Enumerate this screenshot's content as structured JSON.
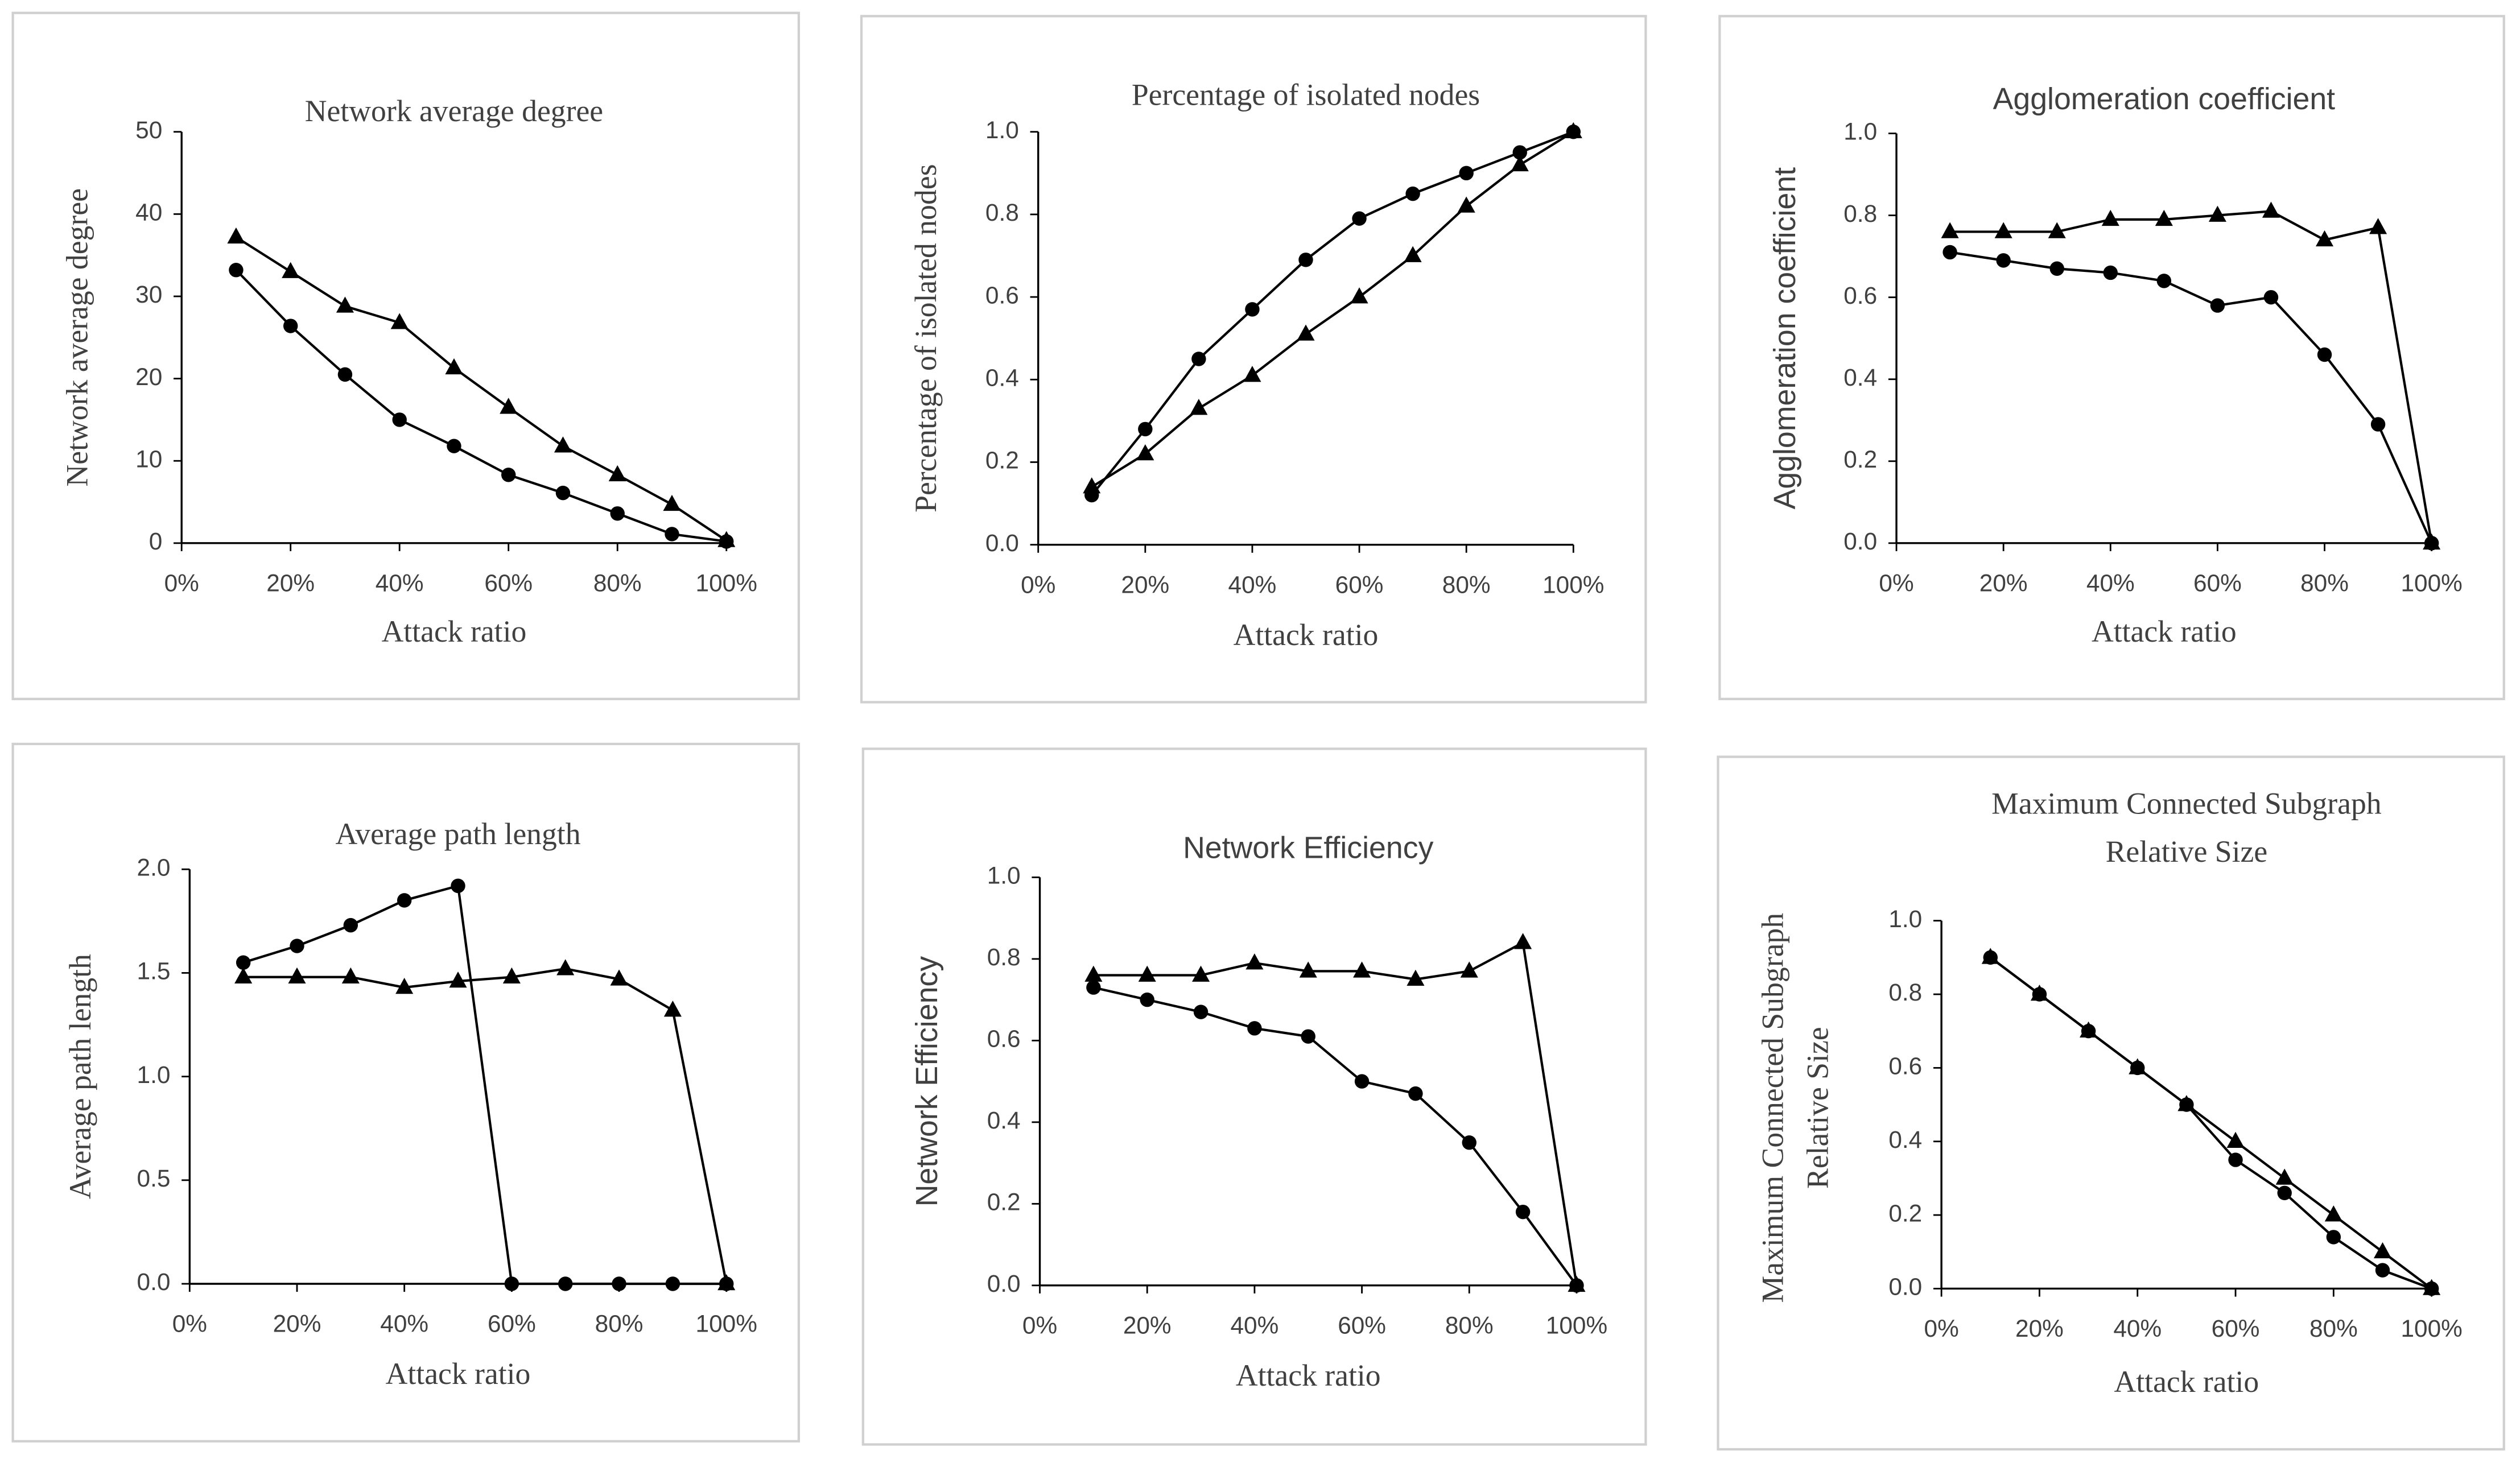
{
  "chart_data": [
    {
      "type": "line",
      "title": "Network average degree",
      "xlabel": "Attack ratio",
      "ylabel": "Network average degree",
      "x": [
        10,
        20,
        30,
        40,
        50,
        60,
        70,
        80,
        90,
        100
      ],
      "series": [
        {
          "marker": "triangle",
          "color": "#000000",
          "values": [
            37.2,
            33,
            28.8,
            26.8,
            21.3,
            16.5,
            11.8,
            8.3,
            4.7,
            0.3
          ]
        },
        {
          "marker": "circle",
          "color": "#000000",
          "values": [
            33.2,
            26.4,
            20.5,
            15,
            11.8,
            8.3,
            6.1,
            3.6,
            1.1,
            0.2
          ]
        }
      ],
      "xlim": [
        0,
        100
      ],
      "xticks": [
        {
          "value": 0,
          "label": "0%"
        },
        {
          "value": 20,
          "label": "20%"
        },
        {
          "value": 40,
          "label": "40%"
        },
        {
          "value": 60,
          "label": "60%"
        },
        {
          "value": 80,
          "label": "80%"
        },
        {
          "value": 100,
          "label": "100%"
        }
      ],
      "ylim": [
        0,
        50
      ],
      "yticks": [
        0,
        10,
        20,
        30,
        40,
        50
      ]
    },
    {
      "type": "line",
      "title": "Percentage of isolated nodes",
      "xlabel": "Attack ratio",
      "ylabel": "Percentage of isolated nodes",
      "x": [
        10,
        20,
        30,
        40,
        50,
        60,
        70,
        80,
        90,
        100
      ],
      "series": [
        {
          "marker": "circle",
          "color": "#000000",
          "values": [
            0.12,
            0.28,
            0.45,
            0.57,
            0.69,
            0.79,
            0.85,
            0.9,
            0.95,
            1.0
          ]
        },
        {
          "marker": "triangle",
          "color": "#000000",
          "values": [
            0.14,
            0.22,
            0.33,
            0.41,
            0.51,
            0.6,
            0.7,
            0.82,
            0.92,
            1.0
          ]
        }
      ],
      "xlim": [
        0,
        100
      ],
      "xticks": [
        {
          "value": 0,
          "label": "0%"
        },
        {
          "value": 20,
          "label": "20%"
        },
        {
          "value": 40,
          "label": "40%"
        },
        {
          "value": 60,
          "label": "60%"
        },
        {
          "value": 80,
          "label": "80%"
        },
        {
          "value": 100,
          "label": "100%"
        }
      ],
      "ylim": [
        0,
        1
      ],
      "yticks": [
        {
          "value": 0,
          "label": "0.0"
        },
        0.2,
        0.4,
        0.6,
        0.8,
        {
          "value": 1,
          "label": "1.0"
        }
      ]
    },
    {
      "type": "line",
      "title": "Agglomeration coefficient",
      "xlabel": "Attack ratio",
      "ylabel": "Agglomeration coefficient",
      "x": [
        10,
        20,
        30,
        40,
        50,
        60,
        70,
        80,
        90,
        100
      ],
      "series": [
        {
          "marker": "triangle",
          "color": "#000000",
          "values": [
            0.76,
            0.76,
            0.76,
            0.79,
            0.79,
            0.8,
            0.81,
            0.74,
            0.77,
            0
          ]
        },
        {
          "marker": "circle",
          "color": "#000000",
          "values": [
            0.71,
            0.69,
            0.67,
            0.66,
            0.64,
            0.58,
            0.6,
            0.46,
            0.29,
            0
          ]
        }
      ],
      "xlim": [
        0,
        100
      ],
      "xticks": [
        {
          "value": 0,
          "label": "0%"
        },
        {
          "value": 20,
          "label": "20%"
        },
        {
          "value": 40,
          "label": "40%"
        },
        {
          "value": 60,
          "label": "60%"
        },
        {
          "value": 80,
          "label": "80%"
        },
        {
          "value": 100,
          "label": "100%"
        }
      ],
      "ylim": [
        0,
        1
      ],
      "yticks": [
        {
          "value": 0,
          "label": "0.0"
        },
        0.2,
        0.4,
        0.6,
        0.8,
        {
          "value": 1,
          "label": "1.0"
        }
      ]
    },
    {
      "type": "line",
      "title": "Average path length",
      "xlabel": "Attack ratio",
      "ylabel": "Average path length",
      "x": [
        10,
        20,
        30,
        40,
        50,
        60,
        70,
        80,
        90,
        100
      ],
      "series": [
        {
          "marker": "circle",
          "color": "#000000",
          "values": [
            1.55,
            1.63,
            1.73,
            1.85,
            1.92,
            0,
            0,
            0,
            0,
            0
          ]
        },
        {
          "marker": "triangle",
          "color": "#000000",
          "values": [
            1.48,
            1.48,
            1.48,
            1.43,
            1.46,
            1.48,
            1.52,
            1.47,
            1.32,
            0
          ]
        }
      ],
      "xlim": [
        0,
        100
      ],
      "xticks": [
        {
          "value": 0,
          "label": "0%"
        },
        {
          "value": 20,
          "label": "20%"
        },
        {
          "value": 40,
          "label": "40%"
        },
        {
          "value": 60,
          "label": "60%"
        },
        {
          "value": 80,
          "label": "80%"
        },
        {
          "value": 100,
          "label": "100%"
        }
      ],
      "ylim": [
        0,
        2
      ],
      "yticks": [
        {
          "value": 0,
          "label": "0.0"
        },
        0.5,
        {
          "value": 1,
          "label": "1.0"
        },
        1.5,
        {
          "value": 2,
          "label": "2.0"
        }
      ]
    },
    {
      "type": "line",
      "title": "Network Efficiency",
      "xlabel": "Attack ratio",
      "ylabel": "Network Efficiency",
      "x": [
        10,
        20,
        30,
        40,
        50,
        60,
        70,
        80,
        90,
        100
      ],
      "series": [
        {
          "marker": "triangle",
          "color": "#000000",
          "values": [
            0.76,
            0.76,
            0.76,
            0.79,
            0.77,
            0.77,
            0.75,
            0.77,
            0.84,
            0
          ]
        },
        {
          "marker": "circle",
          "color": "#000000",
          "values": [
            0.73,
            0.7,
            0.67,
            0.63,
            0.61,
            0.5,
            0.47,
            0.35,
            0.18,
            0
          ]
        }
      ],
      "xlim": [
        0,
        100
      ],
      "xticks": [
        {
          "value": 0,
          "label": "0%"
        },
        {
          "value": 20,
          "label": "20%"
        },
        {
          "value": 40,
          "label": "40%"
        },
        {
          "value": 60,
          "label": "60%"
        },
        {
          "value": 80,
          "label": "80%"
        },
        {
          "value": 100,
          "label": "100%"
        }
      ],
      "ylim": [
        0,
        1
      ],
      "yticks": [
        {
          "value": 0,
          "label": "0.0"
        },
        0.2,
        0.4,
        0.6,
        0.8,
        {
          "value": 1,
          "label": "1.0"
        }
      ]
    },
    {
      "type": "line",
      "title": [
        "Maximum Connected Subgraph",
        "Relative Size"
      ],
      "xlabel": "Attack ratio",
      "ylabel": [
        "Maximum Connected Subgraph",
        "Relative Size"
      ],
      "x": [
        10,
        20,
        30,
        40,
        50,
        60,
        70,
        80,
        90,
        100
      ],
      "series": [
        {
          "marker": "triangle",
          "color": "#000000",
          "values": [
            0.9,
            0.8,
            0.7,
            0.6,
            0.5,
            0.4,
            0.3,
            0.2,
            0.1,
            0
          ]
        },
        {
          "marker": "circle",
          "color": "#000000",
          "values": [
            0.9,
            0.8,
            0.7,
            0.6,
            0.5,
            0.35,
            0.26,
            0.14,
            0.05,
            0
          ]
        }
      ],
      "xlim": [
        0,
        100
      ],
      "xticks": [
        {
          "value": 0,
          "label": "0%"
        },
        {
          "value": 20,
          "label": "20%"
        },
        {
          "value": 40,
          "label": "40%"
        },
        {
          "value": 60,
          "label": "60%"
        },
        {
          "value": 80,
          "label": "80%"
        },
        {
          "value": 100,
          "label": "100%"
        }
      ],
      "ylim": [
        0,
        1
      ],
      "yticks": [
        {
          "value": 0,
          "label": "0.0"
        },
        0.2,
        0.4,
        0.6,
        0.8,
        {
          "value": 1,
          "label": "1.0"
        }
      ]
    }
  ]
}
